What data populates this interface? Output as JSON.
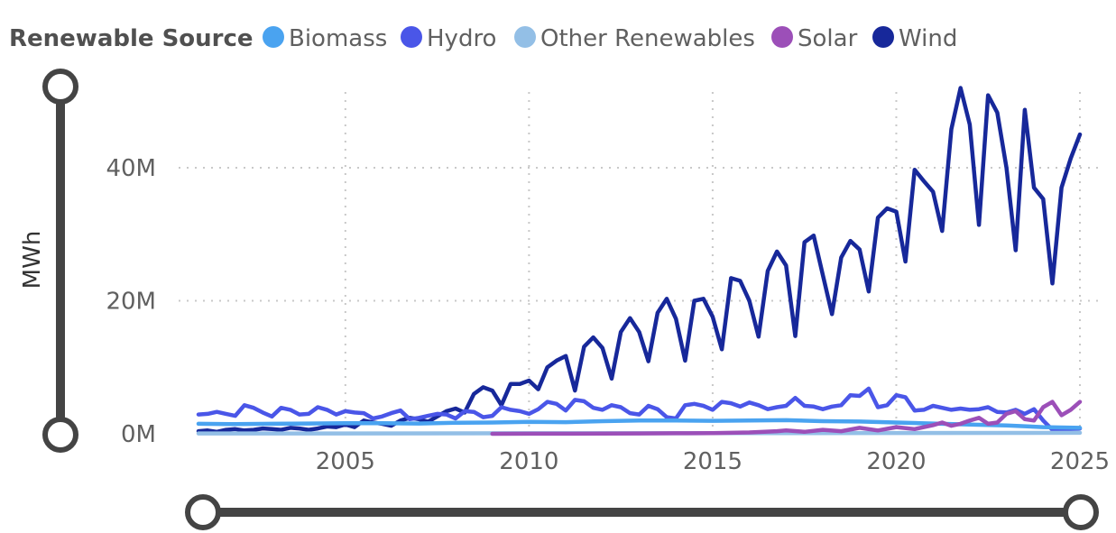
{
  "legend": {
    "title": "Renewable Source",
    "items": [
      {
        "label": "Biomass",
        "color": "#4aa3f0"
      },
      {
        "label": "Hydro",
        "color": "#4a56e8"
      },
      {
        "label": "Other Renewables",
        "color": "#93bfe6"
      },
      {
        "label": "Solar",
        "color": "#9c4fb8"
      },
      {
        "label": "Wind",
        "color": "#17289a"
      }
    ]
  },
  "y_axis": {
    "title": "MWh",
    "ticks": [
      {
        "value": 0,
        "label": "0M"
      },
      {
        "value": 20000000,
        "label": "20M"
      },
      {
        "value": 40000000,
        "label": "40M"
      }
    ]
  },
  "x_axis": {
    "ticks": [
      {
        "value": 2005,
        "label": "2005"
      },
      {
        "value": 2010,
        "label": "2010"
      },
      {
        "value": 2015,
        "label": "2015"
      },
      {
        "value": 2020,
        "label": "2020"
      },
      {
        "value": 2025,
        "label": "2025"
      }
    ]
  },
  "slider": {
    "x_range": [
      2001,
      2025
    ],
    "y_range": [
      0,
      52000000
    ]
  },
  "chart_data": {
    "type": "line",
    "xlabel": "",
    "ylabel": "MWh",
    "xlim": [
      2001,
      2025
    ],
    "ylim": [
      0,
      52000000
    ],
    "grid": true,
    "legend_position": "top",
    "series": [
      {
        "name": "Wind",
        "color": "#17289a",
        "x": [
          2001.0,
          2001.25,
          2001.5,
          2001.75,
          2002.0,
          2002.25,
          2002.5,
          2002.75,
          2003.0,
          2003.25,
          2003.5,
          2003.75,
          2004.0,
          2004.25,
          2004.5,
          2004.75,
          2005.0,
          2005.25,
          2005.5,
          2005.75,
          2006.0,
          2006.25,
          2006.5,
          2006.75,
          2007.0,
          2007.25,
          2007.5,
          2007.75,
          2008.0,
          2008.25,
          2008.5,
          2008.75,
          2009.0,
          2009.25,
          2009.5,
          2009.75,
          2010.0,
          2010.25,
          2010.5,
          2010.75,
          2011.0,
          2011.25,
          2011.5,
          2011.75,
          2012.0,
          2012.25,
          2012.5,
          2012.75,
          2013.0,
          2013.25,
          2013.5,
          2013.75,
          2014.0,
          2014.25,
          2014.5,
          2014.75,
          2015.0,
          2015.25,
          2015.5,
          2015.75,
          2016.0,
          2016.25,
          2016.5,
          2016.75,
          2017.0,
          2017.25,
          2017.5,
          2017.75,
          2018.0,
          2018.25,
          2018.5,
          2018.75,
          2019.0,
          2019.25,
          2019.5,
          2019.75,
          2020.0,
          2020.25,
          2020.5,
          2020.75,
          2021.0,
          2021.25,
          2021.5,
          2021.75,
          2022.0,
          2022.25,
          2022.5,
          2022.75,
          2023.0,
          2023.25,
          2023.5,
          2023.75,
          2024.0,
          2024.25,
          2024.5,
          2024.75,
          2025.0
        ],
        "y": [
          400000,
          500000,
          300000,
          600000,
          700000,
          500000,
          600000,
          800000,
          700000,
          600000,
          900000,
          800000,
          600000,
          800000,
          1100000,
          1000000,
          1400000,
          1000000,
          2000000,
          1700000,
          1500000,
          1200000,
          2000000,
          2400000,
          2200000,
          1800000,
          2600000,
          3400000,
          3800000,
          3200000,
          6000000,
          7000000,
          6500000,
          4300000,
          7500000,
          7500000,
          8000000,
          6700000,
          10000000,
          11000000,
          11700000,
          6500000,
          13100000,
          14500000,
          12900000,
          8300000,
          15300000,
          17400000,
          15300000,
          10900000,
          18200000,
          20300000,
          17300000,
          11000000,
          20000000,
          20300000,
          17600000,
          12700000,
          23400000,
          23000000,
          20000000,
          14600000,
          24500000,
          27400000,
          25300000,
          14700000,
          28800000,
          29800000,
          23900000,
          18000000,
          26500000,
          29000000,
          27700000,
          21400000,
          32500000,
          33900000,
          33400000,
          25900000,
          39700000,
          38000000,
          36400000,
          30500000,
          45800000,
          52000000,
          46500000,
          31400000,
          50900000,
          48300000,
          40000000,
          27600000,
          48700000,
          37000000,
          35300000,
          22600000,
          37000000,
          41400000,
          45000000
        ],
        "clip_end": 2025.0
      },
      {
        "name": "Hydro",
        "color": "#4a56e8",
        "x": [
          2001.0,
          2001.25,
          2001.5,
          2001.75,
          2002.0,
          2002.25,
          2002.5,
          2002.75,
          2003.0,
          2003.25,
          2003.5,
          2003.75,
          2004.0,
          2004.25,
          2004.5,
          2004.75,
          2005.0,
          2005.25,
          2005.5,
          2005.75,
          2006.0,
          2006.25,
          2006.5,
          2006.75,
          2007.0,
          2007.25,
          2007.5,
          2007.75,
          2008.0,
          2008.25,
          2008.5,
          2008.75,
          2009.0,
          2009.25,
          2009.5,
          2009.75,
          2010.0,
          2010.25,
          2010.5,
          2010.75,
          2011.0,
          2011.25,
          2011.5,
          2011.75,
          2012.0,
          2012.25,
          2012.5,
          2012.75,
          2013.0,
          2013.25,
          2013.5,
          2013.75,
          2014.0,
          2014.25,
          2014.5,
          2014.75,
          2015.0,
          2015.25,
          2015.5,
          2015.75,
          2016.0,
          2016.25,
          2016.5,
          2016.75,
          2017.0,
          2017.25,
          2017.5,
          2017.75,
          2018.0,
          2018.25,
          2018.5,
          2018.75,
          2019.0,
          2019.25,
          2019.5,
          2019.75,
          2020.0,
          2020.25,
          2020.5,
          2020.75,
          2021.0,
          2021.25,
          2021.5,
          2021.75,
          2022.0,
          2022.25,
          2022.5,
          2022.75,
          2023.0,
          2023.25,
          2023.5,
          2023.75,
          2024.0,
          2024.25,
          2024.5,
          2024.75,
          2025.0
        ],
        "y": [
          2900000,
          3000000,
          3300000,
          3000000,
          2700000,
          4300000,
          3900000,
          3200000,
          2600000,
          3900000,
          3600000,
          2900000,
          3000000,
          4000000,
          3600000,
          2900000,
          3400000,
          3200000,
          3100000,
          2300000,
          2600000,
          3100000,
          3500000,
          2200000,
          2400000,
          2700000,
          3000000,
          2900000,
          2300000,
          3400000,
          3300000,
          2500000,
          2700000,
          4000000,
          3600000,
          3400000,
          3000000,
          3700000,
          4800000,
          4500000,
          3500000,
          5100000,
          4900000,
          3900000,
          3600000,
          4300000,
          4000000,
          3100000,
          2900000,
          4200000,
          3700000,
          2500000,
          2300000,
          4300000,
          4500000,
          4200000,
          3600000,
          4800000,
          4600000,
          4100000,
          4700000,
          4300000,
          3700000,
          4000000,
          4200000,
          5400000,
          4200000,
          4100000,
          3700000,
          4100000,
          4300000,
          5800000,
          5700000,
          6800000,
          4000000,
          4300000,
          5800000,
          5500000,
          3500000,
          3600000,
          4200000,
          3900000,
          3600000,
          3800000,
          3600000,
          3700000,
          4000000,
          3300000,
          3200000,
          3600000,
          3000000,
          3700000,
          2000000,
          600000,
          700000,
          700000,
          800000
        ],
        "clip_end": 2025.0
      },
      {
        "name": "Biomass",
        "color": "#4aa3f0",
        "x": [
          2001.0,
          2002.0,
          2003.0,
          2004.0,
          2005.0,
          2006.0,
          2007.0,
          2008.0,
          2009.0,
          2010.0,
          2011.0,
          2012.0,
          2013.0,
          2014.0,
          2015.0,
          2016.0,
          2017.0,
          2018.0,
          2019.0,
          2020.0,
          2021.0,
          2022.0,
          2023.0,
          2024.0,
          2025.0
        ],
        "y": [
          1500000,
          1450000,
          1500000,
          1550000,
          1600000,
          1600000,
          1550000,
          1650000,
          1700000,
          1800000,
          1750000,
          1900000,
          2000000,
          2000000,
          1950000,
          2000000,
          2050000,
          1900000,
          1850000,
          1700000,
          1550000,
          1400000,
          1250000,
          1000000,
          900000
        ],
        "clip_end": 2025.0
      },
      {
        "name": "Other Renewables",
        "color": "#93bfe6",
        "x": [
          2001.0,
          2005.0,
          2010.0,
          2015.0,
          2020.0,
          2025.0
        ],
        "y": [
          50000,
          60000,
          80000,
          100000,
          120000,
          150000
        ],
        "clip_end": 2025.0
      },
      {
        "name": "Solar",
        "color": "#9c4fb8",
        "x": [
          2009.0,
          2010.0,
          2011.0,
          2012.0,
          2013.0,
          2014.0,
          2015.0,
          2016.0,
          2016.75,
          2017.0,
          2017.5,
          2018.0,
          2018.5,
          2019.0,
          2019.5,
          2020.0,
          2020.5,
          2021.0,
          2021.25,
          2021.5,
          2021.75,
          2022.0,
          2022.25,
          2022.5,
          2022.75,
          2023.0,
          2023.25,
          2023.5,
          2023.75,
          2024.0,
          2024.25,
          2024.5,
          2024.75,
          2025.0
        ],
        "y": [
          0,
          10000,
          20000,
          30000,
          50000,
          80000,
          100000,
          200000,
          400000,
          500000,
          300000,
          600000,
          400000,
          900000,
          500000,
          1000000,
          700000,
          1300000,
          1700000,
          1200000,
          1500000,
          2000000,
          2400000,
          1500000,
          1700000,
          3000000,
          3400000,
          2200000,
          2000000,
          4000000,
          4800000,
          2800000,
          3600000,
          4800000
        ],
        "clip_end": 2025.0
      }
    ]
  }
}
